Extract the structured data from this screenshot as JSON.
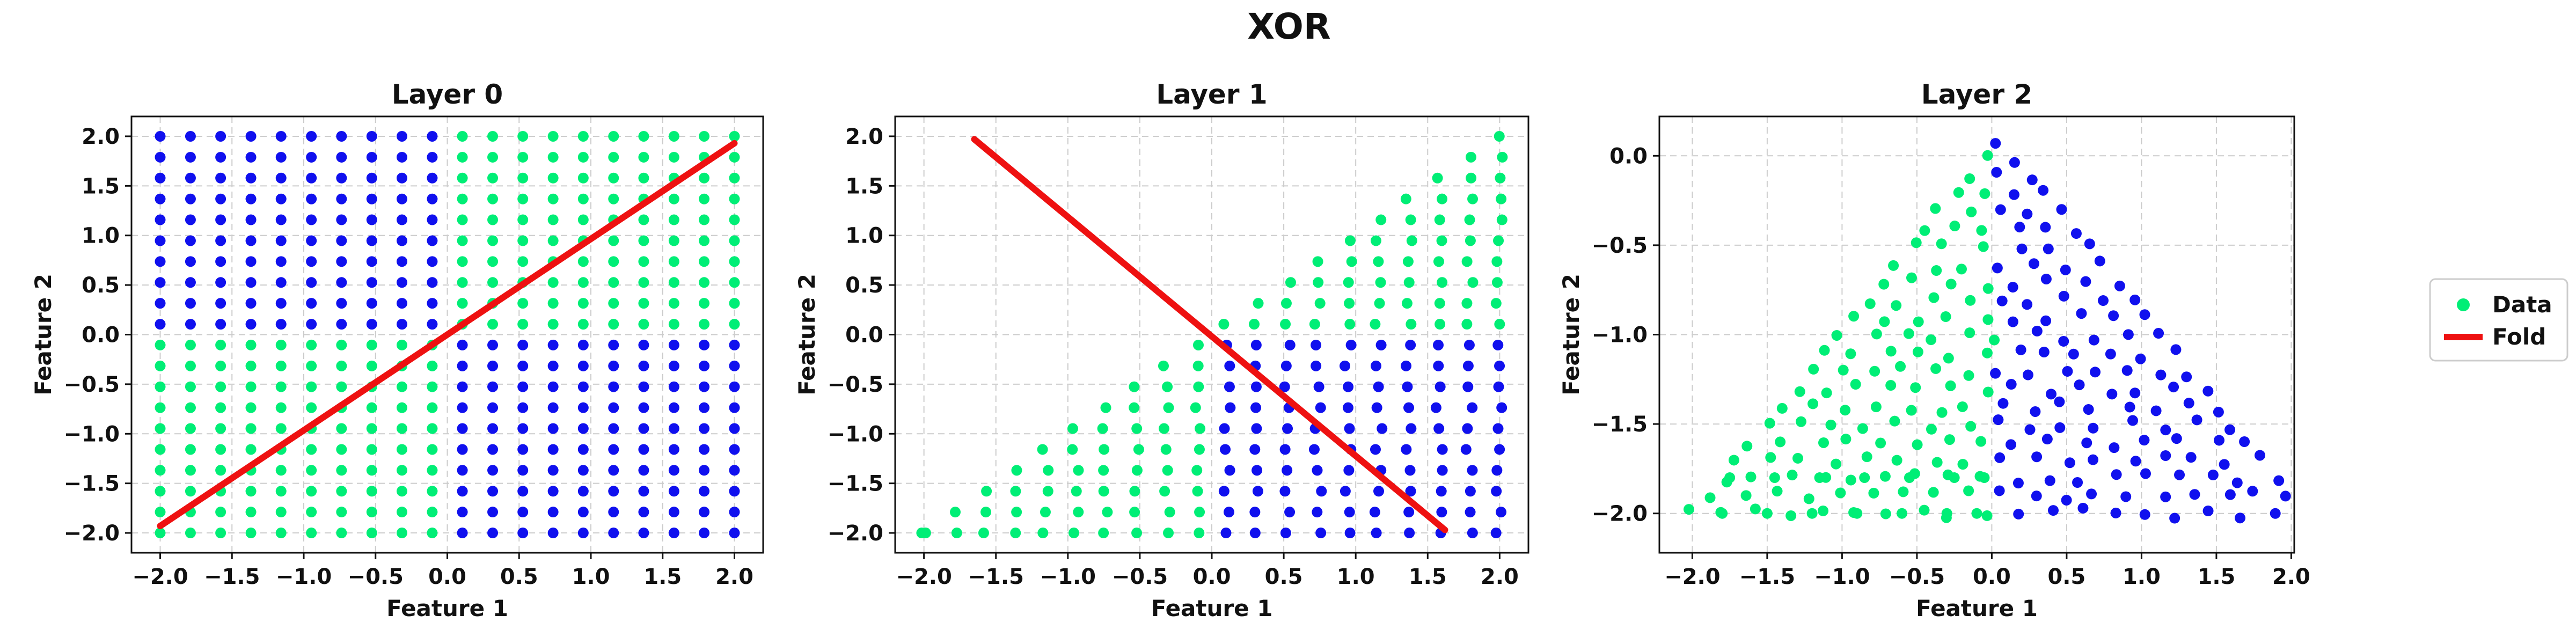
{
  "title": "XOR",
  "colors": {
    "class_a": "#00ee76",
    "class_b": "#1010ee",
    "fold": "#ee1111",
    "grid": "#cccccc"
  },
  "legend": {
    "items": [
      "Data",
      "Fold"
    ],
    "placement": "right"
  },
  "chart_data": [
    {
      "type": "scatter",
      "title": "Layer 0",
      "xlabel": "Feature 1",
      "ylabel": "Feature 2",
      "xlim": [
        -2.2,
        2.2
      ],
      "ylim": [
        -2.2,
        2.2
      ],
      "xticks": [
        -2.0,
        -1.5,
        -1.0,
        -0.5,
        0.0,
        0.5,
        1.0,
        1.5,
        2.0
      ],
      "yticks": [
        -2.0,
        -1.5,
        -1.0,
        -0.5,
        0.0,
        0.5,
        1.0,
        1.5,
        2.0
      ],
      "tick_labels_x": [
        "−2.0",
        "−1.5",
        "−1.0",
        "−0.5",
        "0.0",
        "0.5",
        "1.0",
        "1.5",
        "2.0"
      ],
      "tick_labels_y": [
        "−2.0",
        "−1.5",
        "−1.0",
        "−0.5",
        "0.0",
        "0.5",
        "1.0",
        "1.5",
        "2.0"
      ],
      "grid": true,
      "description": "20x20 grid of points in [-2,2]^2; sign(x)*sign(y) < 0 is blue, otherwise green",
      "grid_values": [
        -2.0,
        -1.789,
        -1.579,
        -1.368,
        -1.158,
        -0.947,
        -0.737,
        -0.526,
        -0.316,
        -0.105,
        0.105,
        0.316,
        0.526,
        0.737,
        0.947,
        1.158,
        1.368,
        1.579,
        1.789,
        2.0
      ],
      "fold": {
        "x": [
          -2.0,
          2.0
        ],
        "y": [
          -1.93,
          1.93
        ]
      }
    },
    {
      "type": "scatter",
      "title": "Layer 1",
      "xlabel": "Feature 1",
      "ylabel": "Feature 2",
      "xlim": [
        -2.2,
        2.2
      ],
      "ylim": [
        -2.2,
        2.2
      ],
      "xticks": [
        -2.0,
        -1.5,
        -1.0,
        -0.5,
        0.0,
        0.5,
        1.0,
        1.5,
        2.0
      ],
      "yticks": [
        -2.0,
        -1.5,
        -1.0,
        -0.5,
        0.0,
        0.5,
        1.0,
        1.5,
        2.0
      ],
      "tick_labels_x": [
        "−2.0",
        "−1.5",
        "−1.0",
        "−0.5",
        "0.0",
        "0.5",
        "1.0",
        "1.5",
        "2.0"
      ],
      "tick_labels_y": [
        "−2.0",
        "−1.5",
        "−1.0",
        "−0.5",
        "0.0",
        "0.5",
        "1.0",
        "1.5",
        "2.0"
      ],
      "grid": true,
      "description": "Layer 0 folded across the red line; points fill lower-right triangle, green above y=0 / left of x=0, blue in lower-right quadrant",
      "fold": {
        "x": [
          -1.65,
          1.62
        ],
        "y": [
          1.97,
          -1.97
        ]
      }
    },
    {
      "type": "scatter",
      "title": "Layer 2",
      "xlabel": "Feature 1",
      "ylabel": "Feature 2",
      "xlim": [
        -2.22,
        2.02
      ],
      "ylim": [
        -2.22,
        0.22
      ],
      "xticks": [
        -2.0,
        -1.5,
        -1.0,
        -0.5,
        0.0,
        0.5,
        1.0,
        1.5,
        2.0
      ],
      "yticks": [
        -2.0,
        -1.5,
        -1.0,
        -0.5,
        0.0
      ],
      "tick_labels_x": [
        "−2.0",
        "−1.5",
        "−1.0",
        "−0.5",
        "0.0",
        "0.5",
        "1.0",
        "1.5",
        "2.0"
      ],
      "tick_labels_y": [
        "−2.0",
        "−1.5",
        "−1.0",
        "−0.5",
        "0.0"
      ],
      "grid": true,
      "description": "Triangle with apex near (0.1, 0.1); green for x<0, blue for x>0"
    }
  ]
}
